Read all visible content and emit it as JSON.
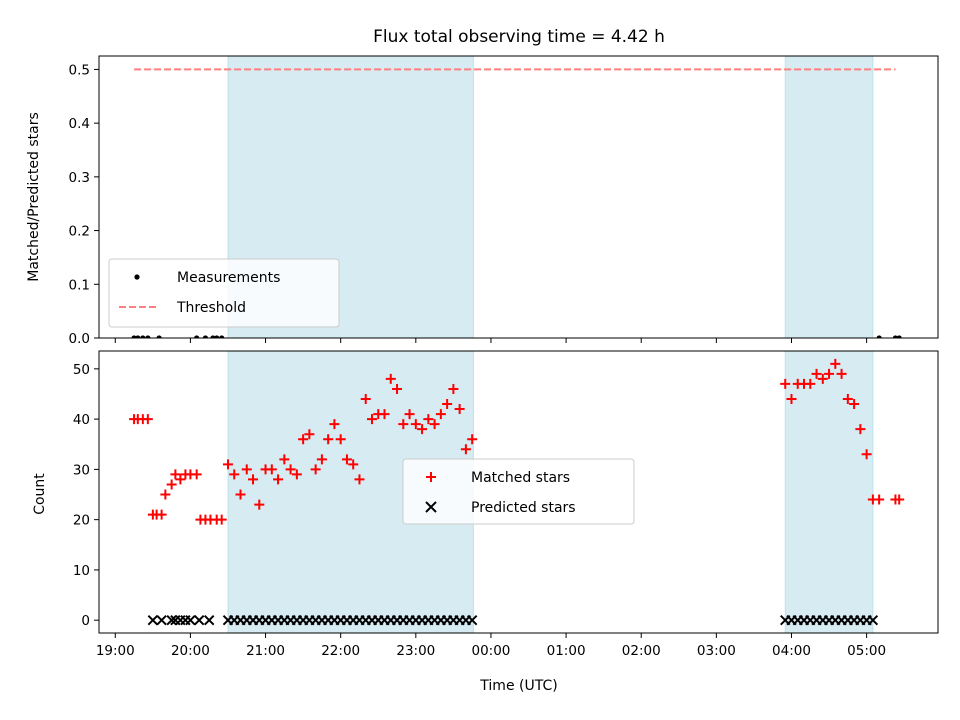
{
  "chart_data": {
    "type": "scatter",
    "title": "Flux total observing time = 4.42 h",
    "xlabel": "Time (UTC)",
    "x_tick_labels": [
      "19:00",
      "20:00",
      "21:00",
      "22:00",
      "23:00",
      "00:00",
      "01:00",
      "02:00",
      "03:00",
      "04:00",
      "05:00"
    ],
    "x_ticks": [
      "19:00",
      "20:00",
      "21:00",
      "22:00",
      "23:00",
      "24:00",
      "25:00",
      "26:00",
      "27:00",
      "28:00",
      "29:00"
    ],
    "xlim": [
      "18:47",
      "29:57"
    ],
    "shaded_periods": [
      {
        "start": "20:30",
        "end": "23:46"
      },
      {
        "start": "27:55",
        "end": "29:05"
      }
    ],
    "panels": [
      {
        "ylabel": "Matched/Predicted stars",
        "ylim": [
          0,
          0.525
        ],
        "yticks": [
          0.0,
          0.1,
          0.2,
          0.3,
          0.4,
          0.5
        ],
        "y_tick_labels": [
          "0.0",
          "0.1",
          "0.2",
          "0.3",
          "0.4",
          "0.5"
        ],
        "legend_position": "lower-left",
        "series": [
          {
            "name": "Measurements",
            "marker": "dot",
            "color": "#000000",
            "points": [
              [
                "19:15",
                0
              ],
              [
                "19:18",
                0
              ],
              [
                "19:22",
                0
              ],
              [
                "19:26",
                0
              ],
              [
                "19:35",
                0
              ],
              [
                "20:05",
                0
              ],
              [
                "20:12",
                0
              ],
              [
                "20:18",
                0
              ],
              [
                "20:21",
                0
              ],
              [
                "20:25",
                0
              ],
              [
                "29:10",
                0
              ],
              [
                "29:23",
                0
              ],
              [
                "29:26",
                0
              ]
            ]
          },
          {
            "name": "Threshold",
            "line": "dashed",
            "color": "#ff7f7f",
            "points": [
              [
                "19:15",
                0.5
              ],
              [
                "29:23",
                0.5
              ]
            ]
          }
        ]
      },
      {
        "ylabel": "Count",
        "ylim": [
          -2.55,
          53.55
        ],
        "yticks": [
          0,
          10,
          20,
          30,
          40,
          50
        ],
        "y_tick_labels": [
          "0",
          "10",
          "20",
          "30",
          "40",
          "50"
        ],
        "legend_position": "center",
        "series": [
          {
            "name": "Matched stars",
            "marker": "plus",
            "color": "#ff0000",
            "points": [
              [
                "19:15",
                40
              ],
              [
                "19:18",
                40
              ],
              [
                "19:22",
                40
              ],
              [
                "19:26",
                40
              ],
              [
                "19:30",
                21
              ],
              [
                "19:33",
                21
              ],
              [
                "19:37",
                21
              ],
              [
                "19:40",
                25
              ],
              [
                "19:45",
                27
              ],
              [
                "19:48",
                29
              ],
              [
                "19:52",
                28
              ],
              [
                "19:56",
                29
              ],
              [
                "20:00",
                29
              ],
              [
                "20:05",
                29
              ],
              [
                "20:08",
                20
              ],
              [
                "20:12",
                20
              ],
              [
                "20:16",
                20
              ],
              [
                "20:21",
                20
              ],
              [
                "20:25",
                20
              ],
              [
                "20:30",
                31
              ],
              [
                "20:35",
                29
              ],
              [
                "20:40",
                25
              ],
              [
                "20:45",
                30
              ],
              [
                "20:50",
                28
              ],
              [
                "20:55",
                23
              ],
              [
                "21:00",
                30
              ],
              [
                "21:05",
                30
              ],
              [
                "21:10",
                28
              ],
              [
                "21:15",
                32
              ],
              [
                "21:20",
                30
              ],
              [
                "21:25",
                29
              ],
              [
                "21:30",
                36
              ],
              [
                "21:35",
                37
              ],
              [
                "21:40",
                30
              ],
              [
                "21:45",
                32
              ],
              [
                "21:50",
                36
              ],
              [
                "21:55",
                39
              ],
              [
                "22:00",
                36
              ],
              [
                "22:05",
                32
              ],
              [
                "22:10",
                31
              ],
              [
                "22:15",
                28
              ],
              [
                "22:20",
                44
              ],
              [
                "22:25",
                40
              ],
              [
                "22:30",
                41
              ],
              [
                "22:35",
                41
              ],
              [
                "22:40",
                48
              ],
              [
                "22:45",
                46
              ],
              [
                "22:50",
                39
              ],
              [
                "22:55",
                41
              ],
              [
                "23:00",
                39
              ],
              [
                "23:05",
                38
              ],
              [
                "23:10",
                40
              ],
              [
                "23:15",
                39
              ],
              [
                "23:20",
                41
              ],
              [
                "23:25",
                43
              ],
              [
                "23:30",
                46
              ],
              [
                "23:35",
                42
              ],
              [
                "23:40",
                34
              ],
              [
                "23:45",
                36
              ],
              [
                "27:55",
                47
              ],
              [
                "28:00",
                44
              ],
              [
                "28:05",
                47
              ],
              [
                "28:10",
                47
              ],
              [
                "28:15",
                47
              ],
              [
                "28:20",
                49
              ],
              [
                "28:25",
                48
              ],
              [
                "28:30",
                49
              ],
              [
                "28:35",
                51
              ],
              [
                "28:40",
                49
              ],
              [
                "28:45",
                44
              ],
              [
                "28:50",
                43
              ],
              [
                "28:55",
                38
              ],
              [
                "29:00",
                33
              ],
              [
                "29:05",
                24
              ],
              [
                "29:10",
                24
              ],
              [
                "29:23",
                24
              ],
              [
                "29:26",
                24
              ]
            ]
          },
          {
            "name": "Predicted stars",
            "marker": "x",
            "color": "#000000",
            "points": [
              [
                "19:30",
                0
              ],
              [
                "19:37",
                0
              ],
              [
                "19:45",
                0
              ],
              [
                "19:48",
                0
              ],
              [
                "19:52",
                0
              ],
              [
                "19:56",
                0
              ],
              [
                "20:00",
                0
              ],
              [
                "20:07",
                0
              ],
              [
                "20:15",
                0
              ],
              [
                "20:30",
                0
              ],
              [
                "20:35",
                0
              ],
              [
                "20:40",
                0
              ],
              [
                "20:45",
                0
              ],
              [
                "20:50",
                0
              ],
              [
                "20:55",
                0
              ],
              [
                "21:00",
                0
              ],
              [
                "21:05",
                0
              ],
              [
                "21:10",
                0
              ],
              [
                "21:15",
                0
              ],
              [
                "21:20",
                0
              ],
              [
                "21:25",
                0
              ],
              [
                "21:30",
                0
              ],
              [
                "21:35",
                0
              ],
              [
                "21:40",
                0
              ],
              [
                "21:45",
                0
              ],
              [
                "21:50",
                0
              ],
              [
                "21:55",
                0
              ],
              [
                "22:00",
                0
              ],
              [
                "22:05",
                0
              ],
              [
                "22:10",
                0
              ],
              [
                "22:15",
                0
              ],
              [
                "22:20",
                0
              ],
              [
                "22:25",
                0
              ],
              [
                "22:30",
                0
              ],
              [
                "22:35",
                0
              ],
              [
                "22:40",
                0
              ],
              [
                "22:45",
                0
              ],
              [
                "22:50",
                0
              ],
              [
                "22:55",
                0
              ],
              [
                "23:00",
                0
              ],
              [
                "23:05",
                0
              ],
              [
                "23:10",
                0
              ],
              [
                "23:15",
                0
              ],
              [
                "23:20",
                0
              ],
              [
                "23:25",
                0
              ],
              [
                "23:30",
                0
              ],
              [
                "23:35",
                0
              ],
              [
                "23:40",
                0
              ],
              [
                "23:45",
                0
              ],
              [
                "27:55",
                0
              ],
              [
                "28:00",
                0
              ],
              [
                "28:05",
                0
              ],
              [
                "28:10",
                0
              ],
              [
                "28:15",
                0
              ],
              [
                "28:20",
                0
              ],
              [
                "28:25",
                0
              ],
              [
                "28:30",
                0
              ],
              [
                "28:35",
                0
              ],
              [
                "28:40",
                0
              ],
              [
                "28:45",
                0
              ],
              [
                "28:50",
                0
              ],
              [
                "28:55",
                0
              ],
              [
                "29:00",
                0
              ],
              [
                "29:05",
                0
              ]
            ]
          }
        ]
      }
    ]
  },
  "colors": {
    "shade": "#add8e6",
    "threshold": "#ff7f7f",
    "matched": "#ff0000",
    "predicted": "#000000",
    "measurement": "#000000"
  }
}
